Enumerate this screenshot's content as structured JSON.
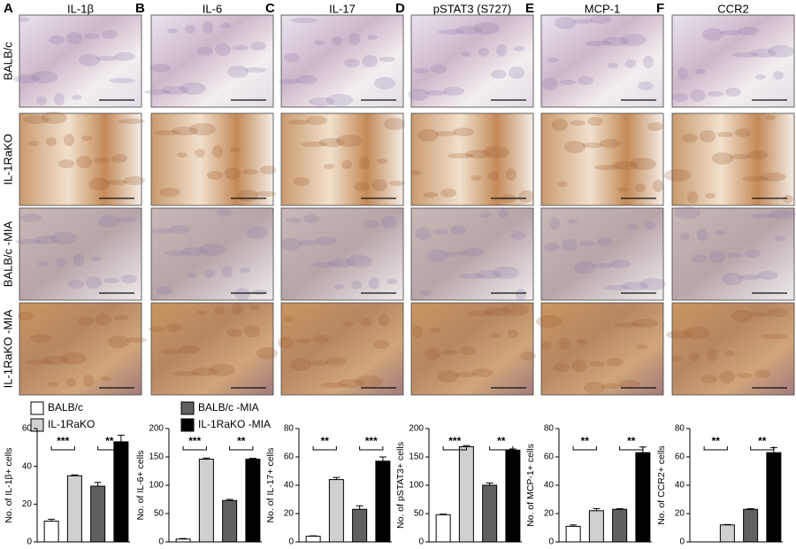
{
  "panels": [
    {
      "letter": "A",
      "title": "IL-1β"
    },
    {
      "letter": "B",
      "title": "IL-6"
    },
    {
      "letter": "C",
      "title": "IL-17"
    },
    {
      "letter": "D",
      "title": "pSTAT3 (S727)"
    },
    {
      "letter": "E",
      "title": "MCP-1"
    },
    {
      "letter": "F",
      "title": "CCR2"
    }
  ],
  "rows": [
    "BALB/c",
    "IL-1RaKO",
    "BALB/c -MIA",
    "IL-1RaKO -MIA"
  ],
  "legend": [
    {
      "name": "BALB/c",
      "color": "#ffffff"
    },
    {
      "name": "IL-1RaKO",
      "color": "#d0d0d0"
    },
    {
      "name": "BALB/c -MIA",
      "color": "#606060"
    },
    {
      "name": "IL-1RaKO -MIA",
      "color": "#000000"
    }
  ],
  "chart_data": [
    {
      "type": "bar",
      "ylabel": "No. of IL-1β+ cells",
      "values": [
        11,
        35,
        29.5,
        53
      ],
      "errors": [
        1,
        0.5,
        2,
        3.5
      ],
      "colors": [
        "#ffffff",
        "#d0d0d0",
        "#606060",
        "#000000"
      ],
      "ylim": [
        0,
        60
      ],
      "yticks": [
        0,
        20,
        40,
        60
      ],
      "annotations": [
        {
          "label": "***",
          "pair": [
            0,
            1
          ]
        },
        {
          "label": "**",
          "pair": [
            2,
            3
          ]
        }
      ]
    },
    {
      "type": "bar",
      "ylabel": "No. of IL-6+ cells",
      "values": [
        5,
        146,
        73,
        146
      ],
      "errors": [
        1,
        2,
        2,
        1.5
      ],
      "colors": [
        "#ffffff",
        "#d0d0d0",
        "#606060",
        "#000000"
      ],
      "ylim": [
        0,
        200
      ],
      "yticks": [
        0,
        50,
        100,
        150,
        200
      ],
      "annotations": [
        {
          "label": "***",
          "pair": [
            0,
            1
          ]
        },
        {
          "label": "**",
          "pair": [
            2,
            3
          ]
        }
      ]
    },
    {
      "type": "bar",
      "ylabel": "No. of IL-17+ cells",
      "values": [
        4,
        44,
        23,
        57
      ],
      "errors": [
        0.3,
        1.5,
        2.5,
        3
      ],
      "colors": [
        "#ffffff",
        "#d0d0d0",
        "#606060",
        "#000000"
      ],
      "ylim": [
        0,
        80
      ],
      "yticks": [
        0,
        20,
        40,
        60,
        80
      ],
      "annotations": [
        {
          "label": "**",
          "pair": [
            0,
            1
          ]
        },
        {
          "label": "***",
          "pair": [
            2,
            3
          ]
        }
      ]
    },
    {
      "type": "bar",
      "ylabel": "No. of pSTAT3+ cells",
      "values": [
        48,
        168,
        100,
        162
      ],
      "errors": [
        1,
        2,
        4,
        2
      ],
      "colors": [
        "#ffffff",
        "#d0d0d0",
        "#606060",
        "#000000"
      ],
      "ylim": [
        0,
        200
      ],
      "yticks": [
        0,
        50,
        100,
        150,
        200
      ],
      "annotations": [
        {
          "label": "***",
          "pair": [
            0,
            1
          ]
        },
        {
          "label": "**",
          "pair": [
            2,
            3
          ]
        }
      ]
    },
    {
      "type": "bar",
      "ylabel": "No. of MCP-1+ cells",
      "values": [
        11,
        22,
        23,
        63
      ],
      "errors": [
        1,
        1.5,
        0.5,
        4
      ],
      "colors": [
        "#ffffff",
        "#d0d0d0",
        "#606060",
        "#000000"
      ],
      "ylim": [
        0,
        80
      ],
      "yticks": [
        0,
        20,
        40,
        60,
        80
      ],
      "annotations": [
        {
          "label": "**",
          "pair": [
            0,
            1
          ]
        },
        {
          "label": "**",
          "pair": [
            2,
            3
          ]
        }
      ]
    },
    {
      "type": "bar",
      "ylabel": "No. of CCR2+ cells",
      "values": [
        0,
        12,
        23,
        63
      ],
      "errors": [
        0,
        0.3,
        0.5,
        3.5
      ],
      "colors": [
        "#ffffff",
        "#d0d0d0",
        "#606060",
        "#000000"
      ],
      "ylim": [
        0,
        80
      ],
      "yticks": [
        0,
        20,
        40,
        60,
        80
      ],
      "annotations": [
        {
          "label": "**",
          "pair": [
            0,
            1
          ]
        },
        {
          "label": "**",
          "pair": [
            2,
            3
          ]
        }
      ]
    }
  ]
}
